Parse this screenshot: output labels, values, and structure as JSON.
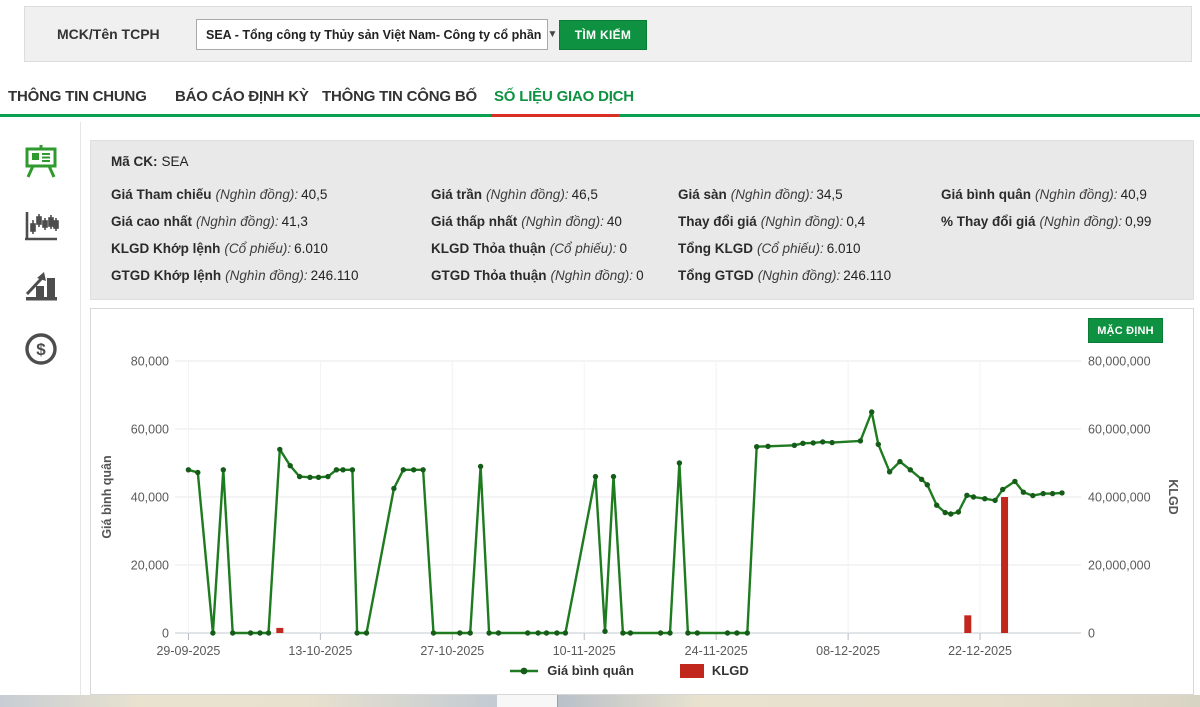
{
  "search_bar": {
    "label": "MCK/Tên TCPH",
    "dropdown_value": "SEA - Tổng công ty Thủy sản Việt Nam- Công ty cổ phần",
    "caret": "▼",
    "search_button": "TÌM KIẾM"
  },
  "tabs": [
    {
      "label": "THÔNG TIN CHUNG",
      "active": false
    },
    {
      "label": "BÁO CÁO ĐỊNH KỲ",
      "active": false
    },
    {
      "label": "THÔNG TIN CÔNG BỐ",
      "active": false
    },
    {
      "label": "SỐ LIỆU GIAO DỊCH",
      "active": true
    }
  ],
  "sidebar_icons": [
    "presentation-board",
    "candlestick-chart",
    "bar-chart-trend",
    "dollar-coin"
  ],
  "info_panel": {
    "code_label": "Mã CK:",
    "code_value": "SEA",
    "fields": [
      {
        "label": "Giá Tham chiếu",
        "unit": "(Nghìn đồng):",
        "value": "40,5"
      },
      {
        "label": "Giá trần",
        "unit": "(Nghìn đồng):",
        "value": "46,5"
      },
      {
        "label": "Giá sàn",
        "unit": "(Nghìn đồng):",
        "value": "34,5"
      },
      {
        "label": "Giá bình quân",
        "unit": "(Nghìn đồng):",
        "value": "40,9"
      },
      {
        "label": "Giá cao nhất",
        "unit": "(Nghìn đồng):",
        "value": "41,3"
      },
      {
        "label": "Giá thấp nhất",
        "unit": "(Nghìn đồng):",
        "value": "40"
      },
      {
        "label": "Thay đổi giá",
        "unit": "(Nghìn đồng):",
        "value": "0,4"
      },
      {
        "label": "% Thay đổi giá",
        "unit": "(Nghìn đồng):",
        "value": "0,99"
      },
      {
        "label": "KLGD Khớp lệnh",
        "unit": "(Cổ phiếu):",
        "value": "6.010"
      },
      {
        "label": "KLGD Thỏa thuận",
        "unit": "(Cổ phiếu):",
        "value": "0"
      },
      {
        "label": "Tổng KLGD",
        "unit": "(Cổ phiếu):",
        "value": "6.010"
      },
      null,
      {
        "label": "GTGD Khớp lệnh",
        "unit": "(Nghìn đồng):",
        "value": "246.110"
      },
      {
        "label": "GTGD Thỏa thuận",
        "unit": "(Nghìn đồng):",
        "value": "0"
      },
      {
        "label": "Tổng GTGD",
        "unit": "(Nghìn đồng):",
        "value": "246.110"
      },
      null
    ]
  },
  "chart": {
    "default_button": "MẶC ĐỊNH",
    "y_left_ticks": [
      "0",
      "20,000",
      "40,000",
      "60,000",
      "80,000"
    ],
    "y_right_ticks": [
      "0",
      "20,000,000",
      "40,000,000",
      "60,000,000",
      "80,000,000"
    ],
    "colors": {
      "line": "#1e7b1f",
      "marker": "#145c17",
      "bar": "#c1271c",
      "grid": "#e8eaec",
      "axis": "#c6cbd1",
      "accent_green": "#0e9140",
      "tab_underline_green": "#0aa052",
      "tab_underline_red": "#d93025"
    }
  },
  "chart_data": {
    "type": "line+bar",
    "title": "",
    "x_axis": {
      "unit": "days since 29-09-2025",
      "range": [
        -1,
        94.5
      ],
      "ticks": [
        0,
        14,
        28,
        42,
        56,
        70,
        84
      ],
      "tick_labels": [
        "29-09-2025",
        "13-10-2025",
        "27-10-2025",
        "10-11-2025",
        "24-11-2025",
        "08-12-2025",
        "22-12-2025"
      ]
    },
    "y_left": {
      "label": "Giá bình quân",
      "range": [
        0,
        80000
      ],
      "grid_step": 20000
    },
    "y_right": {
      "label": "KLGD",
      "range": [
        0,
        80000000
      ],
      "grid_step": 20000000
    },
    "legend_position": "bottom-center",
    "series": [
      {
        "name": "Giá bình quân",
        "type": "line",
        "axis": "left",
        "color": "#1e7b1f",
        "points": [
          [
            0,
            48000
          ],
          [
            1,
            47200
          ],
          [
            2.6,
            0
          ],
          [
            3.7,
            48000
          ],
          [
            4.7,
            0
          ],
          [
            6.6,
            0
          ],
          [
            7.6,
            0
          ],
          [
            8.5,
            0
          ],
          [
            9.7,
            54000
          ],
          [
            10.8,
            49200
          ],
          [
            11.8,
            46000
          ],
          [
            12.9,
            45800
          ],
          [
            13.8,
            45800
          ],
          [
            14.8,
            46000
          ],
          [
            15.7,
            48000
          ],
          [
            16.4,
            48000
          ],
          [
            17.4,
            48000
          ],
          [
            17.9,
            0
          ],
          [
            18.9,
            0
          ],
          [
            21.8,
            42500
          ],
          [
            22.8,
            48000
          ],
          [
            23.9,
            48000
          ],
          [
            24.9,
            48000
          ],
          [
            26,
            0
          ],
          [
            28.8,
            0
          ],
          [
            29.9,
            0
          ],
          [
            31,
            49000
          ],
          [
            31.9,
            0
          ],
          [
            32.9,
            0
          ],
          [
            36,
            0
          ],
          [
            37.1,
            0
          ],
          [
            38,
            0
          ],
          [
            39.1,
            0
          ],
          [
            40,
            0
          ],
          [
            43.2,
            46000
          ],
          [
            44.2,
            500
          ],
          [
            45.1,
            46000
          ],
          [
            46.1,
            0
          ],
          [
            46.9,
            0
          ],
          [
            50.1,
            0
          ],
          [
            51.1,
            0
          ],
          [
            52.1,
            50000
          ],
          [
            53,
            0
          ],
          [
            54,
            0
          ],
          [
            57.2,
            0
          ],
          [
            58.2,
            0
          ],
          [
            59.3,
            0
          ],
          [
            60.3,
            54800
          ],
          [
            61.5,
            54900
          ],
          [
            64.3,
            55200
          ],
          [
            65.2,
            55800
          ],
          [
            66.3,
            55900
          ],
          [
            67.3,
            56200
          ],
          [
            68.3,
            56000
          ],
          [
            71.3,
            56500
          ],
          [
            72.5,
            65000
          ],
          [
            73.2,
            55500
          ],
          [
            74.4,
            47400
          ],
          [
            75.5,
            50400
          ],
          [
            76.6,
            48000
          ],
          [
            77.8,
            45200
          ],
          [
            78.4,
            43600
          ],
          [
            79.4,
            37600
          ],
          [
            80.3,
            35400
          ],
          [
            80.9,
            35000
          ],
          [
            81.7,
            35600
          ],
          [
            82.6,
            40500
          ],
          [
            83.3,
            40000
          ],
          [
            84.5,
            39500
          ],
          [
            85.6,
            39000
          ],
          [
            86.4,
            42200
          ],
          [
            87.7,
            44600
          ],
          [
            88.6,
            41400
          ],
          [
            89.6,
            40400
          ],
          [
            90.7,
            41000
          ],
          [
            91.7,
            41000
          ],
          [
            92.7,
            41200
          ]
        ]
      },
      {
        "name": "KLGD",
        "type": "bar",
        "axis": "right",
        "color": "#c1271c",
        "points": [
          [
            9.7,
            1500000
          ],
          [
            82.7,
            5200000
          ],
          [
            86.6,
            40000000
          ]
        ]
      }
    ]
  }
}
